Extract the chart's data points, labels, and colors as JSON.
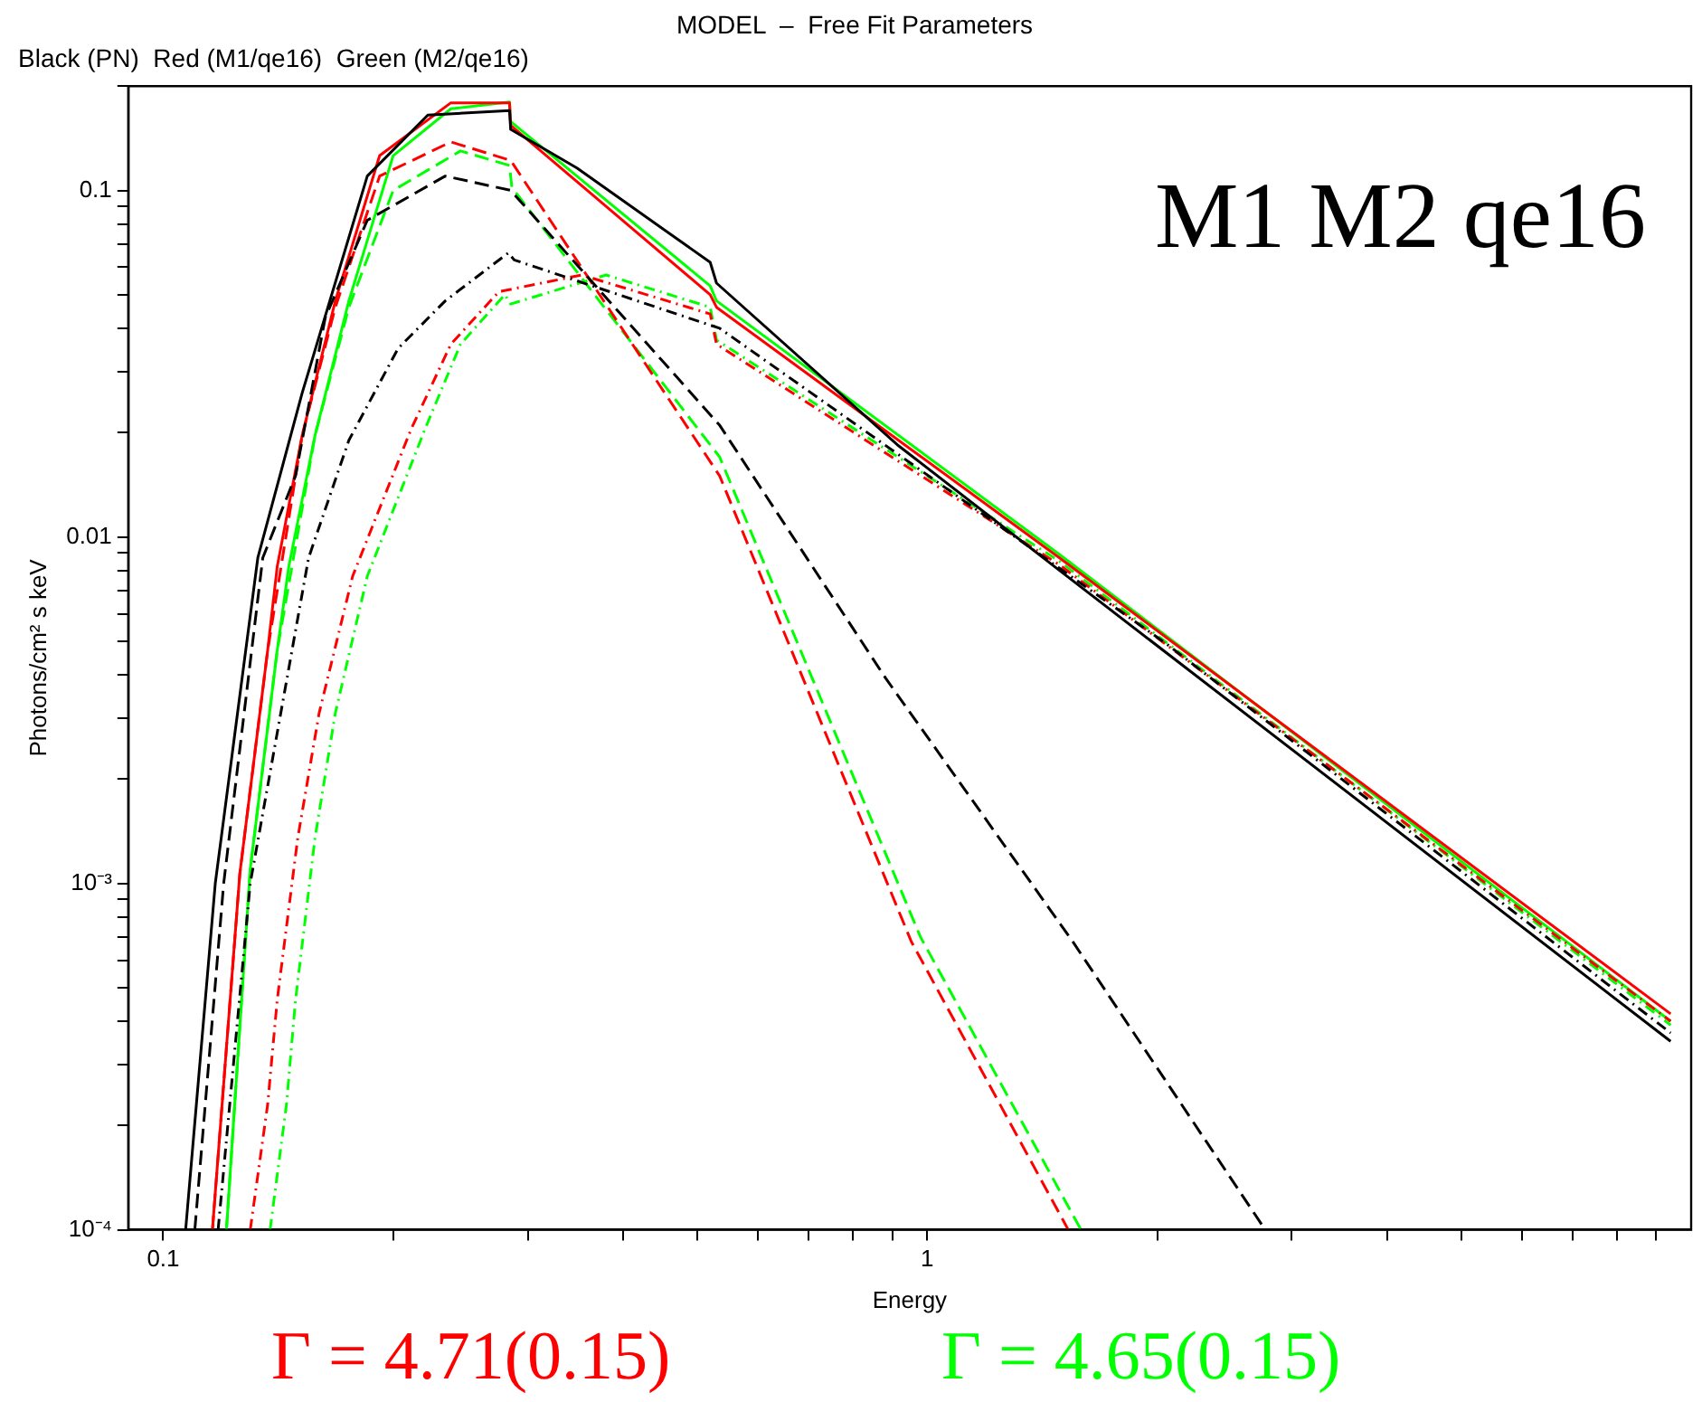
{
  "chart_data": {
    "type": "line",
    "title": "MODEL  –  Free Fit Parameters",
    "subtitle": "Black (PN)  Red (M1/qe16)  Green (M2/qe16)",
    "xlabel": "Energy",
    "ylabel": "Photons/cm² s keV",
    "log": "xy",
    "grid": false,
    "legend": false,
    "marker": "none",
    "xlim": [
      0.09,
      10
    ],
    "ylim": [
      0.0001,
      0.2
    ],
    "xticks": [
      {
        "value": 0.1,
        "label": "0.1"
      },
      {
        "value": 0.2,
        "label": null
      },
      {
        "value": 0.3,
        "label": null
      },
      {
        "value": 0.4,
        "label": null
      },
      {
        "value": 0.5,
        "label": null
      },
      {
        "value": 0.6,
        "label": null
      },
      {
        "value": 0.7,
        "label": null
      },
      {
        "value": 0.8,
        "label": null
      },
      {
        "value": 0.9,
        "label": null
      },
      1,
      {
        "value": 2,
        "label": null
      },
      {
        "value": 3,
        "label": null
      },
      {
        "value": 4,
        "label": null
      },
      {
        "value": 5,
        "label": null
      },
      {
        "value": 6,
        "label": null
      },
      {
        "value": 7,
        "label": null
      },
      {
        "value": 8,
        "label": null
      },
      {
        "value": 9,
        "label": null
      }
    ],
    "yticks": [
      {
        "value": 0.0001,
        "label": "10⁻⁴"
      },
      {
        "value": 0.0002,
        "label": null
      },
      {
        "value": 0.0003,
        "label": null
      },
      {
        "value": 0.0004,
        "label": null
      },
      {
        "value": 0.0005,
        "label": null
      },
      {
        "value": 0.0006,
        "label": null
      },
      {
        "value": 0.0007,
        "label": null
      },
      {
        "value": 0.0008,
        "label": null
      },
      {
        "value": 0.0009,
        "label": null
      },
      {
        "value": 0.001,
        "label": "10⁻³"
      },
      {
        "value": 0.002,
        "label": null
      },
      {
        "value": 0.003,
        "label": null
      },
      {
        "value": 0.004,
        "label": null
      },
      {
        "value": 0.005,
        "label": null
      },
      {
        "value": 0.006,
        "label": null
      },
      {
        "value": 0.007,
        "label": null
      },
      {
        "value": 0.008,
        "label": null
      },
      {
        "value": 0.009,
        "label": null
      },
      0.01,
      {
        "value": 0.02,
        "label": null
      },
      {
        "value": 0.03,
        "label": null
      },
      {
        "value": 0.04,
        "label": null
      },
      {
        "value": 0.05,
        "label": null
      },
      {
        "value": 0.06,
        "label": null
      },
      {
        "value": 0.07,
        "label": null
      },
      {
        "value": 0.08,
        "label": null
      },
      {
        "value": 0.09,
        "label": null
      },
      0.1,
      {
        "value": 0.2,
        "label": null
      }
    ],
    "annotations": [
      "M1 M2 qe16",
      "Γ = 4.71(0.15)",
      "Γ = 4.65(0.15)"
    ],
    "series": [
      {
        "color": "#000000",
        "line_style": "solid",
        "x": [
          0.107,
          0.117,
          0.133,
          0.152,
          0.185,
          0.222,
          0.284,
          0.285,
          0.348,
          0.52,
          0.53,
          0.918,
          1.49,
          9.4
        ],
        "values": [
          0.0001,
          0.001,
          0.0087,
          0.026,
          0.11,
          0.165,
          0.17,
          0.15,
          0.116,
          0.062,
          0.054,
          0.0183,
          0.008,
          0.00035
        ]
      },
      {
        "color": "#000000",
        "line_style": "dashed",
        "x": [
          0.11,
          0.12,
          0.135,
          0.149,
          0.163,
          0.185,
          0.234,
          0.285,
          0.535,
          0.883,
          1.55,
          2.77
        ],
        "values": [
          0.0001,
          0.001,
          0.0087,
          0.015,
          0.043,
          0.082,
          0.11,
          0.1,
          0.021,
          0.0039,
          0.00068,
          0.0001
        ]
      },
      {
        "color": "#000000",
        "line_style": "dotted",
        "x": [
          0.118,
          0.13,
          0.155,
          0.175,
          0.203,
          0.234,
          0.283,
          0.288,
          0.535,
          2.06,
          9.4
        ],
        "values": [
          0.0001,
          0.001,
          0.0087,
          0.019,
          0.035,
          0.048,
          0.066,
          0.063,
          0.04,
          0.0049,
          0.00037
        ]
      },
      {
        "color": "#ff0000",
        "line_style": "solid",
        "x": [
          0.116,
          0.126,
          0.137,
          0.141,
          0.152,
          0.168,
          0.192,
          0.238,
          0.284,
          0.285,
          0.52,
          0.53,
          1.49,
          9.4
        ],
        "values": [
          0.0001,
          0.00107,
          0.0047,
          0.0082,
          0.0196,
          0.048,
          0.126,
          0.179,
          0.179,
          0.154,
          0.05,
          0.046,
          0.0087,
          0.00042
        ]
      },
      {
        "color": "#ff0000",
        "line_style": "dashed",
        "x": [
          0.116,
          0.126,
          0.137,
          0.152,
          0.168,
          0.192,
          0.238,
          0.285,
          0.535,
          0.953,
          1.53
        ],
        "values": [
          0.0001,
          0.00107,
          0.0047,
          0.0196,
          0.046,
          0.11,
          0.138,
          0.122,
          0.015,
          0.00068,
          0.0001
        ]
      },
      {
        "color": "#ff0000",
        "line_style": "dotted",
        "x": [
          0.13,
          0.137,
          0.141,
          0.15,
          0.16,
          0.177,
          0.211,
          0.238,
          0.275,
          0.353,
          0.52,
          0.53,
          1.49,
          9.4
        ],
        "values": [
          0.0001,
          0.00023,
          0.00046,
          0.00135,
          0.0031,
          0.0077,
          0.0204,
          0.036,
          0.051,
          0.057,
          0.044,
          0.036,
          0.0083,
          0.0004
        ]
      },
      {
        "color": "#00ff00",
        "line_style": "solid",
        "x": [
          0.121,
          0.13,
          0.141,
          0.146,
          0.158,
          0.175,
          0.2,
          0.238,
          0.284,
          0.285,
          0.52,
          0.53,
          1.49,
          9.4
        ],
        "values": [
          0.0001,
          0.0011,
          0.0047,
          0.0082,
          0.0196,
          0.048,
          0.126,
          0.172,
          0.18,
          0.158,
          0.053,
          0.048,
          0.0089,
          0.0004
        ]
      },
      {
        "color": "#00ff00",
        "line_style": "dashed",
        "x": [
          0.121,
          0.13,
          0.141,
          0.158,
          0.175,
          0.2,
          0.245,
          0.284,
          0.286,
          0.535,
          0.98,
          1.59
        ],
        "values": [
          0.0001,
          0.0011,
          0.0047,
          0.0196,
          0.046,
          0.1,
          0.13,
          0.118,
          0.102,
          0.017,
          0.0007,
          0.0001
        ]
      },
      {
        "color": "#00ff00",
        "line_style": "dotted",
        "x": [
          0.138,
          0.145,
          0.149,
          0.158,
          0.168,
          0.185,
          0.22,
          0.245,
          0.28,
          0.285,
          0.38,
          0.52,
          0.53,
          1.49,
          9.4
        ],
        "values": [
          0.0001,
          0.00023,
          0.00046,
          0.00135,
          0.0031,
          0.0077,
          0.0204,
          0.036,
          0.05,
          0.047,
          0.057,
          0.046,
          0.037,
          0.0085,
          0.00039
        ]
      }
    ]
  }
}
